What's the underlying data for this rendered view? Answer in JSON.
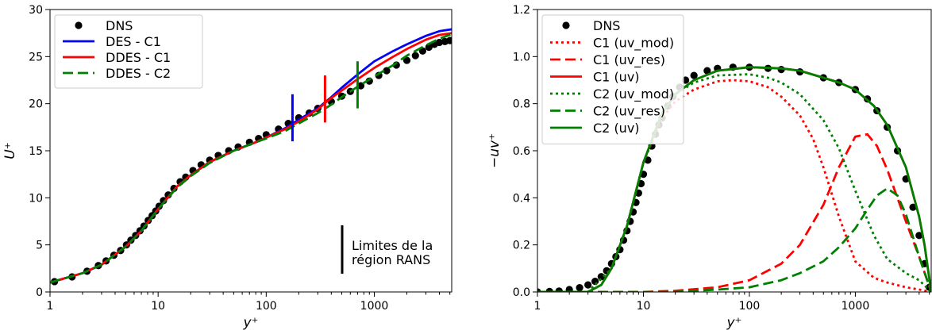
{
  "chart_data": [
    {
      "type": "line",
      "xscale": "log",
      "xlim": [
        1,
        5200
      ],
      "ylim": [
        0,
        30
      ],
      "xlabel": "y⁺",
      "ylabel": "U⁺",
      "xticks": [
        "1",
        "10",
        "100",
        "1000"
      ],
      "yticks": [
        "0",
        "5",
        "10",
        "15",
        "20",
        "25",
        "30"
      ],
      "legend": {
        "placement": "top-left"
      },
      "series": [
        {
          "name": "DNS",
          "style": "dots",
          "color": "#000000",
          "x": [
            1.1,
            1.6,
            2.2,
            2.8,
            3.3,
            3.9,
            4.5,
            5.1,
            5.6,
            6.2,
            6.8,
            7.4,
            8.1,
            8.8,
            9.5,
            10.2,
            11.2,
            12.4,
            14,
            16,
            18,
            21,
            25,
            30,
            36,
            45,
            55,
            70,
            85,
            100,
            130,
            160,
            200,
            250,
            300,
            400,
            500,
            600,
            750,
            900,
            1100,
            1300,
            1600,
            2000,
            2400,
            2800,
            3200,
            3600,
            4000,
            4500,
            5000
          ],
          "y": [
            1.1,
            1.6,
            2.2,
            2.8,
            3.3,
            3.9,
            4.4,
            5.0,
            5.5,
            6.0,
            6.5,
            7.0,
            7.6,
            8.1,
            8.6,
            9.1,
            9.7,
            10.3,
            11.0,
            11.7,
            12.2,
            12.9,
            13.5,
            14.0,
            14.5,
            15.0,
            15.4,
            15.9,
            16.3,
            16.7,
            17.3,
            17.9,
            18.5,
            19.0,
            19.5,
            20.2,
            20.8,
            21.3,
            21.9,
            22.4,
            23.0,
            23.5,
            24.1,
            24.6,
            25.1,
            25.6,
            26.0,
            26.3,
            26.5,
            26.6,
            26.7
          ]
        },
        {
          "name": "DES - C1",
          "style": "solid",
          "color": "#0000ff",
          "x": [
            1,
            2,
            3,
            5,
            7,
            10,
            15,
            20,
            30,
            50,
            80,
            100,
            150,
            200,
            300,
            400,
            500,
            700,
            1000,
            1500,
            2000,
            3000,
            4000,
            5200
          ],
          "y": [
            1.0,
            2.0,
            2.9,
            4.8,
            6.5,
            8.8,
            11.2,
            12.4,
            13.8,
            15.0,
            15.9,
            16.4,
            17.4,
            18.3,
            19.5,
            20.7,
            21.7,
            23.1,
            24.5,
            25.6,
            26.3,
            27.2,
            27.7,
            27.9
          ]
        },
        {
          "name": "DDES - C1",
          "style": "solid",
          "color": "#ff0000",
          "x": [
            1,
            2,
            3,
            5,
            7,
            10,
            15,
            20,
            30,
            50,
            80,
            100,
            150,
            200,
            300,
            400,
            500,
            700,
            1000,
            1500,
            2000,
            3000,
            4000,
            5200
          ],
          "y": [
            1.0,
            2.0,
            2.9,
            4.8,
            6.5,
            8.8,
            11.2,
            12.4,
            13.8,
            15.0,
            15.9,
            16.4,
            17.3,
            18.1,
            19.4,
            20.6,
            21.4,
            22.6,
            23.8,
            25.0,
            25.8,
            26.8,
            27.3,
            27.5
          ]
        },
        {
          "name": "DDES - C2",
          "style": "dashed",
          "color": "#008000",
          "x": [
            1,
            2,
            3,
            5,
            7,
            10,
            15,
            20,
            30,
            50,
            80,
            100,
            150,
            200,
            300,
            400,
            500,
            700,
            1000,
            1500,
            2000,
            3000,
            4000,
            5200
          ],
          "y": [
            1.0,
            2.0,
            2.9,
            4.8,
            6.5,
            8.8,
            11.1,
            12.3,
            13.7,
            15.0,
            15.9,
            16.3,
            17.1,
            17.9,
            19.0,
            19.9,
            20.7,
            21.8,
            22.9,
            24.1,
            25.1,
            26.2,
            26.9,
            27.4
          ]
        }
      ],
      "markers": [
        {
          "x": 175,
          "y_range": [
            16,
            21
          ],
          "color": "#0000ff"
        },
        {
          "x": 350,
          "y_range": [
            18,
            23
          ],
          "color": "#ff0000"
        },
        {
          "x": 700,
          "y_range": [
            19.5,
            24.5
          ],
          "color": "#008000"
        }
      ],
      "annotation": {
        "text_line1": "Limites de la",
        "text_line2": "région RANS",
        "color": "#000000"
      }
    },
    {
      "type": "line",
      "xscale": "log",
      "xlim": [
        1,
        5200
      ],
      "ylim": [
        0,
        1.2
      ],
      "xlabel": "y⁺",
      "ylabel": "−uv⁺",
      "xticks": [
        "1",
        "10",
        "100",
        "1000"
      ],
      "yticks": [
        "0.0",
        "0.2",
        "0.4",
        "0.6",
        "0.8",
        "1.0",
        "1.2"
      ],
      "legend": {
        "placement": "top-left"
      },
      "series": [
        {
          "name": "DNS",
          "style": "dots",
          "color": "#000000",
          "x": [
            1,
            1.3,
            1.6,
            2,
            2.5,
            3,
            3.5,
            4,
            4.5,
            5,
            5.5,
            6,
            6.5,
            7,
            7.5,
            8,
            8.5,
            9,
            9.5,
            10,
            11,
            12,
            13,
            14,
            15,
            17,
            19,
            22,
            25,
            30,
            40,
            50,
            70,
            100,
            150,
            200,
            300,
            500,
            700,
            1000,
            1300,
            1600,
            2000,
            2500,
            3000,
            3500,
            4000,
            4500,
            5000
          ],
          "y": [
            0.0,
            0.002,
            0.004,
            0.01,
            0.018,
            0.03,
            0.045,
            0.065,
            0.09,
            0.12,
            0.15,
            0.18,
            0.22,
            0.26,
            0.3,
            0.34,
            0.38,
            0.42,
            0.46,
            0.5,
            0.56,
            0.62,
            0.67,
            0.71,
            0.74,
            0.79,
            0.83,
            0.87,
            0.9,
            0.92,
            0.94,
            0.95,
            0.955,
            0.955,
            0.95,
            0.945,
            0.935,
            0.91,
            0.89,
            0.86,
            0.82,
            0.77,
            0.7,
            0.6,
            0.48,
            0.36,
            0.24,
            0.12,
            0.02
          ]
        },
        {
          "name": "C1 (uv_mod)",
          "style": "dotted",
          "color": "#ff0000",
          "x": [
            1,
            3,
            5,
            7,
            10,
            15,
            20,
            30,
            50,
            70,
            100,
            150,
            200,
            300,
            400,
            500,
            700,
            1000,
            1500,
            2000,
            3000,
            4000,
            5200
          ],
          "y": [
            0.0,
            0.0,
            0.1,
            0.28,
            0.55,
            0.74,
            0.81,
            0.86,
            0.895,
            0.9,
            0.895,
            0.87,
            0.83,
            0.75,
            0.65,
            0.53,
            0.32,
            0.13,
            0.06,
            0.04,
            0.02,
            0.01,
            0.0
          ]
        },
        {
          "name": "C1 (uv_res)",
          "style": "dashed",
          "color": "#ff0000",
          "x": [
            1,
            10,
            20,
            50,
            100,
            200,
            300,
            500,
            700,
            1000,
            1300,
            1600,
            2000,
            3000,
            4000,
            5200
          ],
          "y": [
            0.0,
            0.0,
            0.005,
            0.02,
            0.05,
            0.12,
            0.2,
            0.37,
            0.53,
            0.66,
            0.67,
            0.62,
            0.52,
            0.3,
            0.15,
            0.0
          ]
        },
        {
          "name": "C1 (uv)",
          "style": "solid",
          "color": "#ff0000",
          "x": [
            1,
            3,
            4,
            5,
            7,
            10,
            15,
            20,
            30,
            50,
            100,
            200,
            300,
            500,
            700,
            1000,
            1500,
            2000,
            3000,
            4000,
            4500,
            5200
          ],
          "y": [
            0.0,
            0.0,
            0.03,
            0.1,
            0.28,
            0.55,
            0.76,
            0.84,
            0.9,
            0.94,
            0.955,
            0.95,
            0.94,
            0.91,
            0.89,
            0.86,
            0.79,
            0.71,
            0.53,
            0.32,
            0.2,
            0.0
          ]
        },
        {
          "name": "C2 (uv_mod)",
          "style": "dotted",
          "color": "#008000",
          "x": [
            1,
            3,
            5,
            7,
            10,
            15,
            20,
            30,
            50,
            100,
            150,
            200,
            300,
            500,
            700,
            1000,
            1500,
            2000,
            3000,
            4000,
            5200
          ],
          "y": [
            0.0,
            0.0,
            0.1,
            0.28,
            0.55,
            0.76,
            0.84,
            0.89,
            0.92,
            0.925,
            0.91,
            0.89,
            0.84,
            0.73,
            0.61,
            0.43,
            0.24,
            0.14,
            0.08,
            0.05,
            0.0
          ]
        },
        {
          "name": "C2 (uv_res)",
          "style": "dashed",
          "color": "#008000",
          "x": [
            1,
            20,
            50,
            100,
            200,
            300,
            500,
            700,
            1000,
            1300,
            1600,
            2000,
            2500,
            3000,
            4000,
            5200
          ],
          "y": [
            0.0,
            0.0,
            0.01,
            0.02,
            0.05,
            0.08,
            0.13,
            0.19,
            0.27,
            0.35,
            0.41,
            0.44,
            0.41,
            0.33,
            0.15,
            0.0
          ]
        },
        {
          "name": "C2 (uv)",
          "style": "solid",
          "color": "#008000",
          "x": [
            1,
            3,
            4,
            5,
            7,
            10,
            15,
            20,
            30,
            50,
            100,
            200,
            300,
            500,
            700,
            1000,
            1500,
            2000,
            3000,
            4000,
            4500,
            5200
          ],
          "y": [
            0.0,
            0.0,
            0.03,
            0.1,
            0.28,
            0.55,
            0.76,
            0.84,
            0.9,
            0.94,
            0.955,
            0.95,
            0.94,
            0.91,
            0.89,
            0.86,
            0.79,
            0.71,
            0.53,
            0.32,
            0.2,
            0.0
          ]
        }
      ]
    }
  ]
}
